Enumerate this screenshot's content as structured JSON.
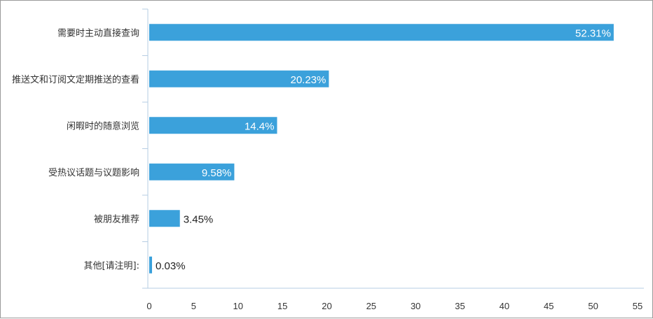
{
  "chart_data": {
    "type": "bar",
    "orientation": "horizontal",
    "categories": [
      "需要时主动直接查询",
      "推送文和订阅文定期推送的查看",
      "闲暇时的随意浏览",
      "受热议话题与议题影响",
      "被朋友推荐",
      "其他[请注明]:"
    ],
    "values": [
      52.31,
      20.23,
      14.4,
      9.58,
      3.45,
      0.03
    ],
    "value_labels": [
      "52.31%",
      "20.23%",
      "14.4%",
      "9.58%",
      "3.45%",
      "0.03%"
    ],
    "title": "",
    "xlabel": "",
    "ylabel": "",
    "xlim": [
      0,
      55
    ],
    "x_ticks": [
      "0",
      "5",
      "10",
      "15",
      "20",
      "25",
      "30",
      "35",
      "40",
      "45",
      "50",
      "55"
    ],
    "grid": false,
    "legend": "none",
    "bar_color": "#3ba1db",
    "axis_color": "#b6cde3"
  }
}
